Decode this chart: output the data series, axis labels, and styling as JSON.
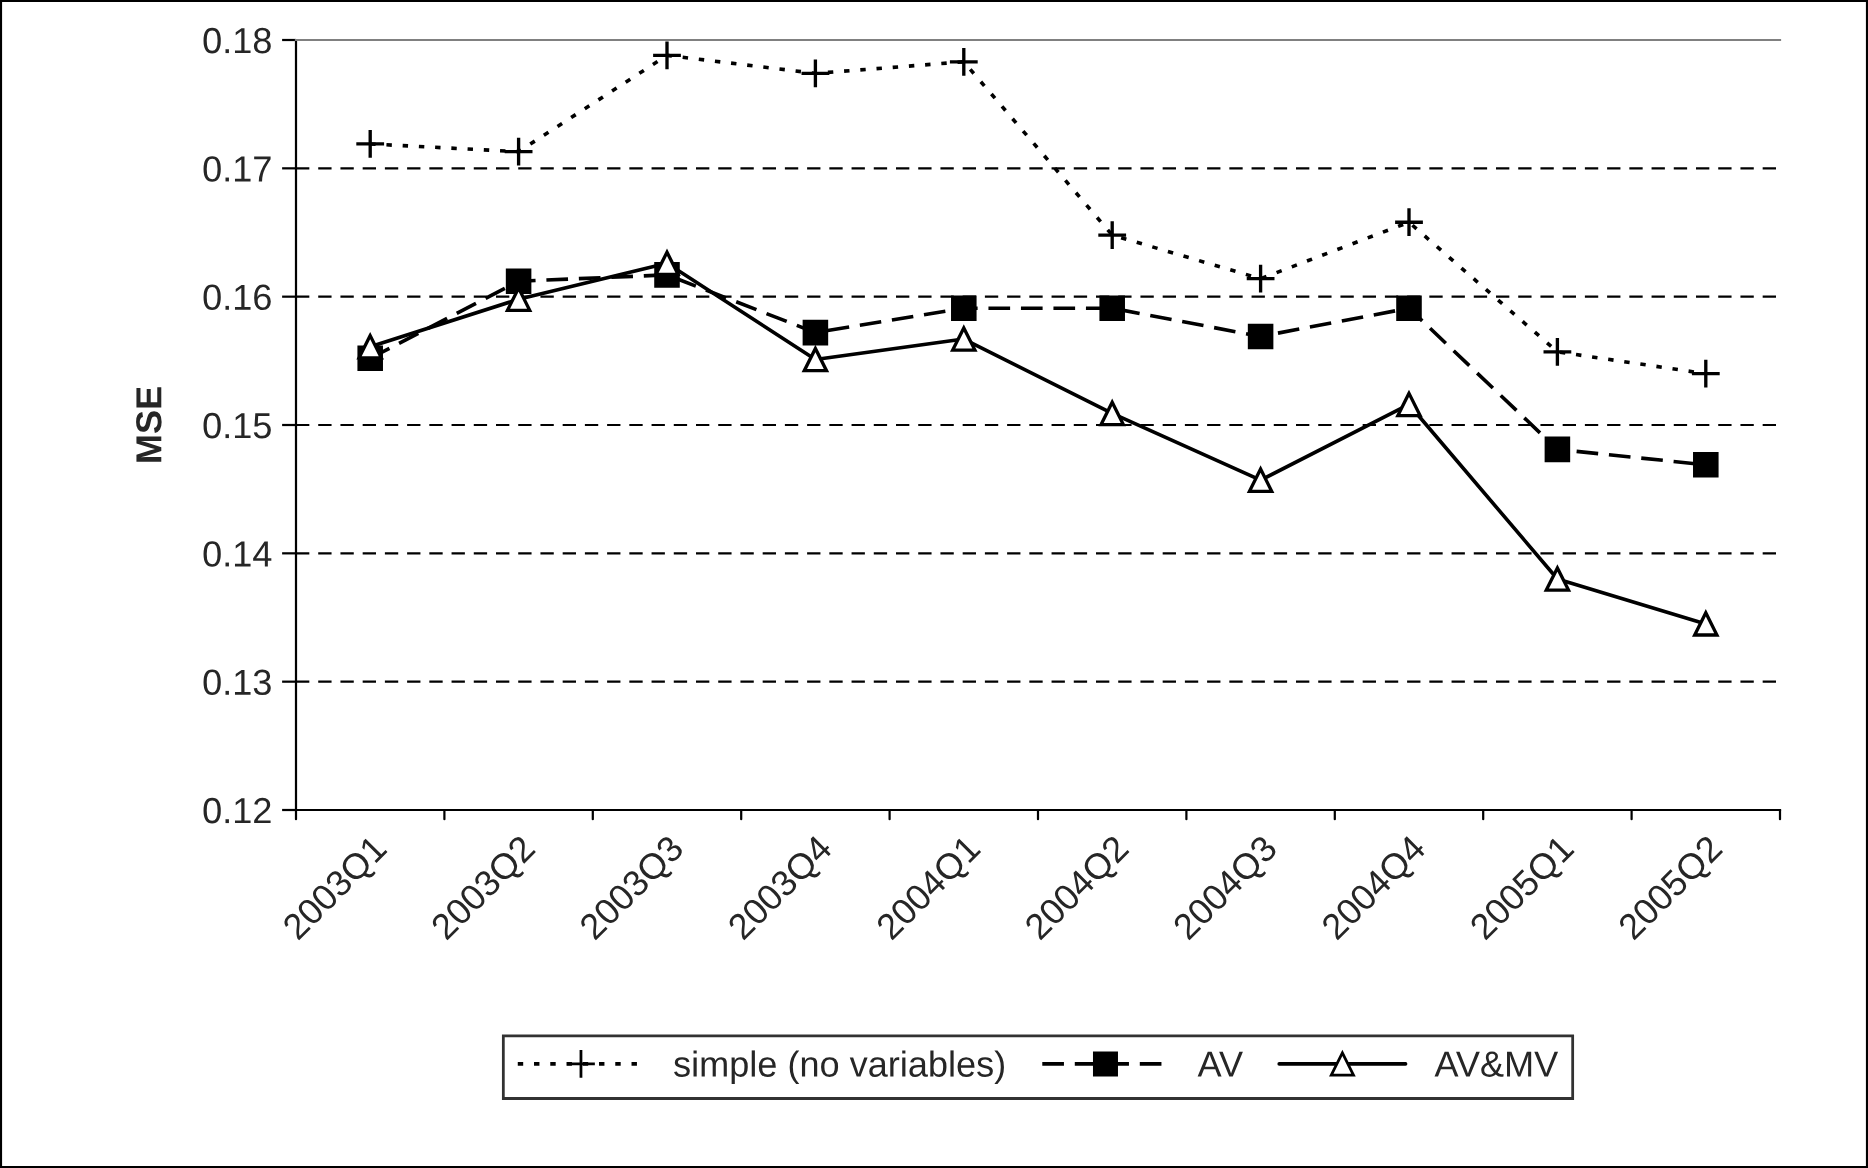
{
  "chart_data": {
    "type": "line",
    "ylabel": "MSE",
    "categories": [
      "2003Q1",
      "2003Q2",
      "2003Q3",
      "2003Q4",
      "2004Q1",
      "2004Q2",
      "2004Q3",
      "2004Q4",
      "2005Q1",
      "2005Q2"
    ],
    "series": [
      {
        "name": "simple (no variables)",
        "color": "#000000",
        "marker": "cross",
        "line_style": "dotted",
        "values": [
          0.1719,
          0.1713,
          0.1788,
          0.1774,
          0.1783,
          0.1648,
          0.1614,
          0.1658,
          0.1557,
          0.154
        ]
      },
      {
        "name": "AV",
        "color": "#000000",
        "marker": "square",
        "line_style": "dashed",
        "values": [
          0.1552,
          0.1612,
          0.1617,
          0.1572,
          0.1591,
          0.1591,
          0.1569,
          0.1591,
          0.1481,
          0.1469
        ]
      },
      {
        "name": "AV&MV",
        "color": "#000000",
        "marker": "triangle",
        "line_style": "solid",
        "values": [
          0.1561,
          0.1598,
          0.1626,
          0.1551,
          0.1567,
          0.1509,
          0.1457,
          0.1516,
          0.138,
          0.1345
        ]
      }
    ],
    "ylim": [
      0.12,
      0.18
    ],
    "yticks": [
      {
        "value": 0.12,
        "label": "0.12"
      },
      {
        "value": 0.13,
        "label": "0.13"
      },
      {
        "value": 0.14,
        "label": "0.14"
      },
      {
        "value": 0.15,
        "label": "0.15"
      },
      {
        "value": 0.16,
        "label": "0.16"
      },
      {
        "value": 0.17,
        "label": "0.17"
      },
      {
        "value": 0.18,
        "label": "0.18"
      }
    ],
    "grid": "y",
    "legend": "bottom"
  }
}
